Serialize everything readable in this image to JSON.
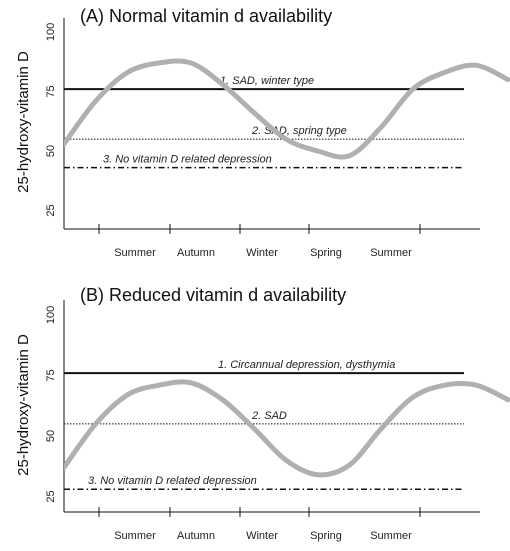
{
  "chart_data": [
    {
      "type": "line",
      "title": "(A) Normal vitamin d availability",
      "ylabel": "25-hydroxy-vitamin D",
      "xlabel": "",
      "ylim": [
        0,
        100
      ],
      "yticks": [
        25,
        50,
        75,
        100
      ],
      "categories": [
        "Summer",
        "Autumn",
        "Winter",
        "Spring",
        "Summer"
      ],
      "grid": false,
      "curve_color": "#b0b0b0",
      "series": [
        {
          "values": [
            {
              "x": 0.0,
              "y": 53
            },
            {
              "x": 0.5,
              "y": 71
            },
            {
              "x": 1.0,
              "y": 83
            },
            {
              "x": 1.5,
              "y": 87
            },
            {
              "x": 2.0,
              "y": 87
            },
            {
              "x": 2.5,
              "y": 78
            },
            {
              "x": 3.0,
              "y": 66
            },
            {
              "x": 3.5,
              "y": 55
            },
            {
              "x": 4.0,
              "y": 50
            },
            {
              "x": 4.5,
              "y": 48
            },
            {
              "x": 5.0,
              "y": 60
            },
            {
              "x": 5.5,
              "y": 76
            },
            {
              "x": 6.0,
              "y": 83
            },
            {
              "x": 6.5,
              "y": 86
            },
            {
              "x": 7.0,
              "y": 80
            }
          ]
        }
      ],
      "thresholds": [
        {
          "label": "1. SAD, winter type",
          "y": 76,
          "style": "solid"
        },
        {
          "label": "2. SAD, spring type",
          "y": 55,
          "style": "dotted"
        },
        {
          "label": "3. No vitamin D related depression",
          "y": 43,
          "style": "dashdot"
        }
      ]
    },
    {
      "type": "line",
      "title": "(B) Reduced vitamin d availability",
      "ylabel": "25-hydroxy-vitamin D",
      "xlabel": "",
      "ylim": [
        0,
        100
      ],
      "yticks": [
        25,
        50,
        75,
        100
      ],
      "categories": [
        "Summer",
        "Autumn",
        "Winter",
        "Spring",
        "Summer"
      ],
      "grid": false,
      "curve_color": "#b0b0b0",
      "series": [
        {
          "values": [
            {
              "x": 0.0,
              "y": 37
            },
            {
              "x": 0.5,
              "y": 55
            },
            {
              "x": 1.0,
              "y": 67
            },
            {
              "x": 1.5,
              "y": 71
            },
            {
              "x": 2.0,
              "y": 72
            },
            {
              "x": 2.5,
              "y": 65
            },
            {
              "x": 3.0,
              "y": 53
            },
            {
              "x": 3.5,
              "y": 40
            },
            {
              "x": 4.0,
              "y": 34
            },
            {
              "x": 4.5,
              "y": 38
            },
            {
              "x": 5.0,
              "y": 53
            },
            {
              "x": 5.5,
              "y": 66
            },
            {
              "x": 6.0,
              "y": 71
            },
            {
              "x": 6.5,
              "y": 71
            },
            {
              "x": 7.0,
              "y": 65
            }
          ]
        }
      ],
      "thresholds": [
        {
          "label": "1. Circannual depression, dysthymia",
          "y": 76,
          "style": "solid"
        },
        {
          "label": "2. SAD",
          "y": 55,
          "style": "dotted"
        },
        {
          "label": "3. No vitamin D related depression",
          "y": 28,
          "style": "dashdot"
        }
      ]
    }
  ]
}
